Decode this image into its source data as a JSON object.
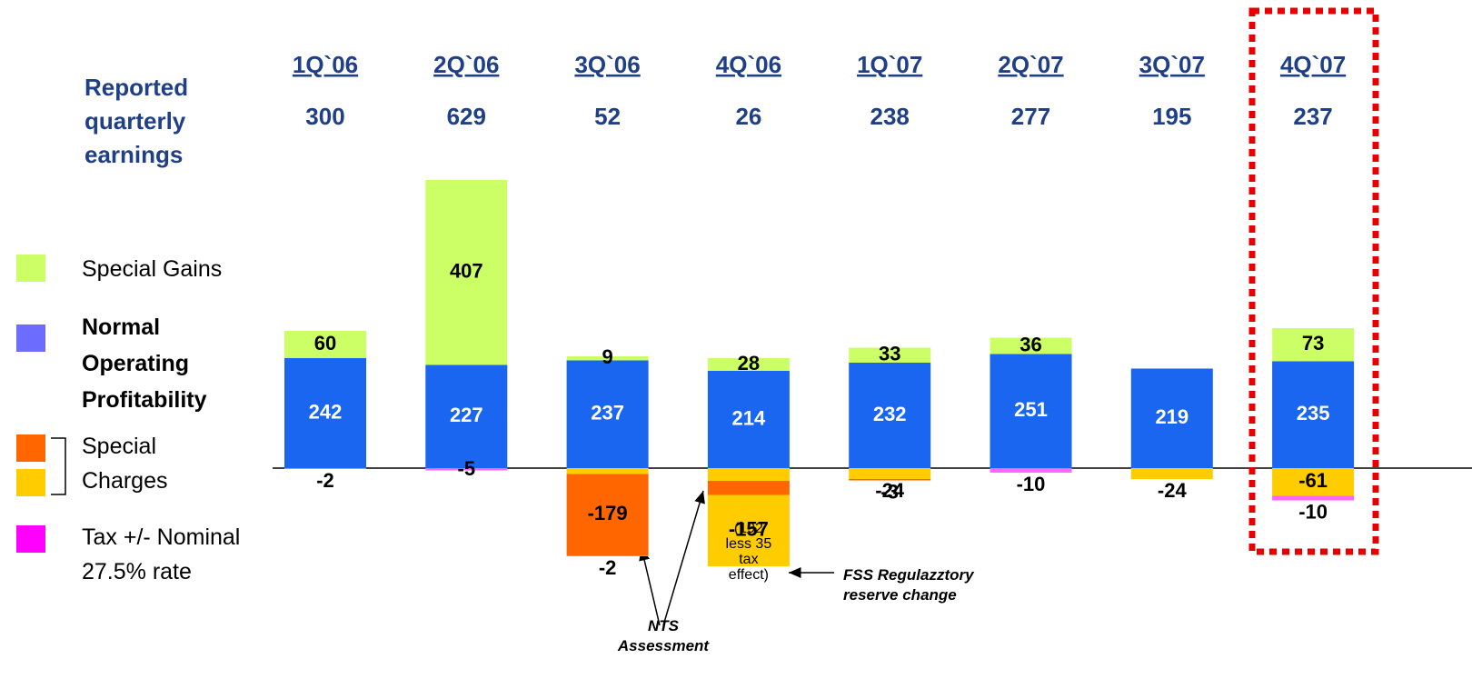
{
  "chart_data": {
    "type": "stacked_bar",
    "row_label": "Reported quarterly earnings",
    "categories": [
      "1Q`06",
      "2Q`06",
      "3Q`06",
      "4Q`06",
      "1Q`07",
      "2Q`07",
      "3Q`07",
      "4Q`07"
    ],
    "reported": [
      300,
      629,
      52,
      26,
      238,
      277,
      195,
      237
    ],
    "series": [
      {
        "name": "Special Gains",
        "color": "#ccff66",
        "values": [
          60,
          407,
          9,
          28,
          33,
          36,
          null,
          73
        ]
      },
      {
        "name": "Normal Operating Profitability",
        "color": "#1a66f0",
        "values": [
          242,
          227,
          237,
          214,
          232,
          251,
          219,
          235
        ]
      }
    ],
    "special_charges": {
      "name": "Special Charges",
      "colors": [
        "#ff6600",
        "#ffcc00"
      ],
      "values": [
        [],
        [],
        [
          -13,
          -179
        ],
        [
          -28,
          -31,
          -157
        ],
        [
          -24,
          -3
        ],
        [],
        [
          -24
        ],
        [
          -61
        ]
      ],
      "color_index": [
        [],
        [],
        [
          1,
          0
        ],
        [
          1,
          0,
          1
        ],
        [
          1,
          0
        ],
        [],
        [
          1
        ],
        [
          1
        ]
      ]
    },
    "tax": {
      "name": "Tax +/- Nominal 27.5% rate",
      "color": "#ff66ff",
      "values": [
        -2,
        -5,
        -2,
        null,
        null,
        -10,
        null,
        -10
      ]
    },
    "annotations": {
      "fss_note": "(192 less 35 tax effect)",
      "nts": "NTS Assessment",
      "fss": "FSS Regulazztory reserve change"
    }
  }
}
